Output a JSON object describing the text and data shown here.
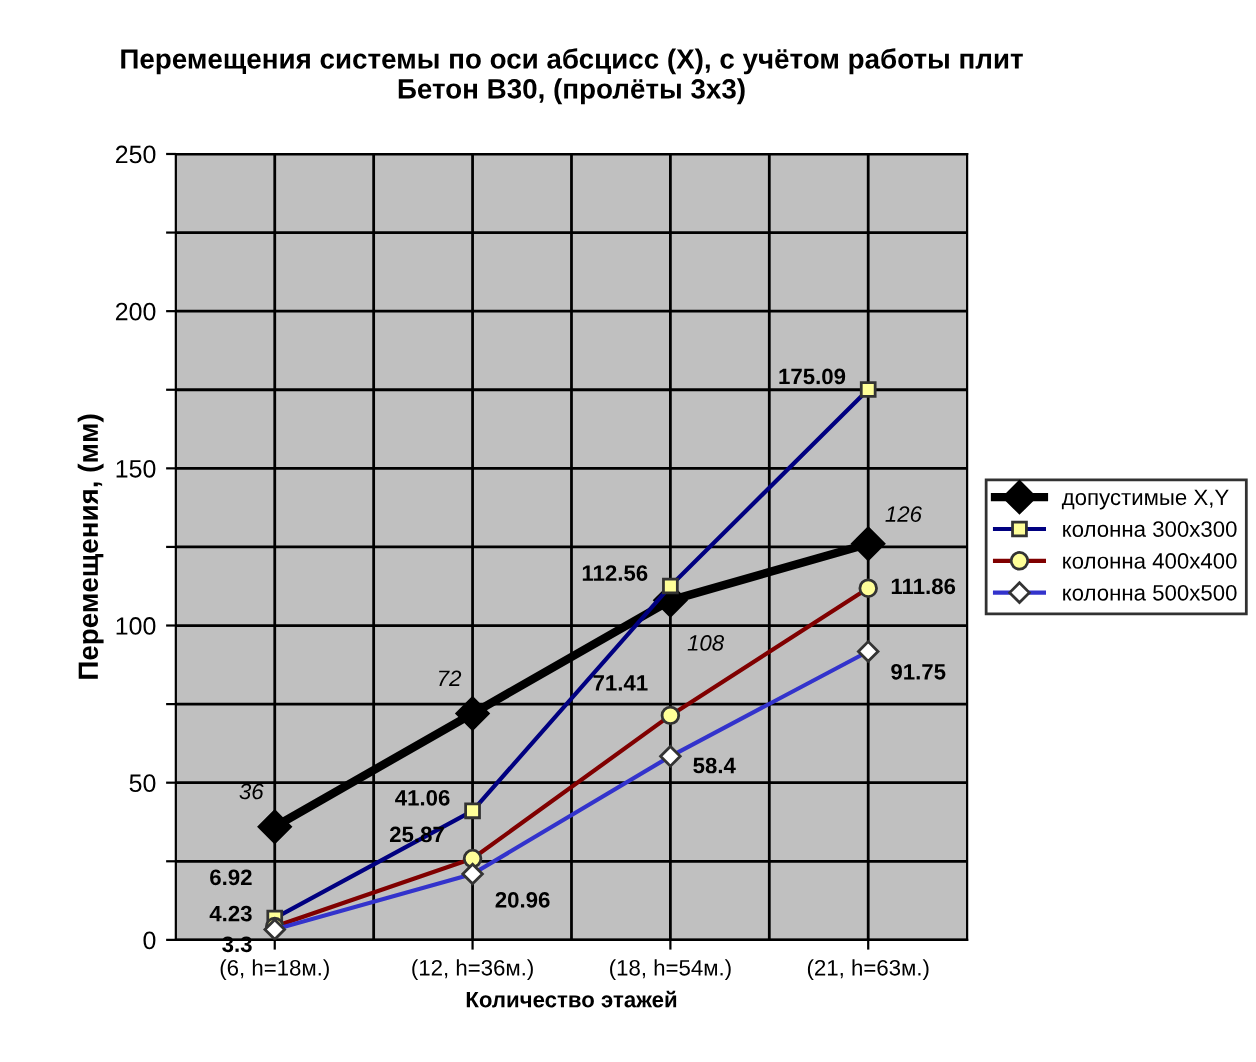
{
  "chart_data": {
    "type": "line",
    "title": "Перемещения системы по оси абсцисс (X), с учётом работы плит\nБетон В30, (пролёты 3x3)",
    "xlabel": "Количество этажей",
    "ylabel": "Перемещения, (мм)",
    "categories": [
      "(6, h=18м.)",
      "(12, h=36м.)",
      "(18, h=54м.)",
      "(21, h=63м.)"
    ],
    "ylim": [
      0,
      250
    ],
    "yticks": [
      0,
      {
        "value": 25,
        "label": null
      },
      50,
      {
        "value": 75,
        "label": null
      },
      100,
      {
        "value": 125,
        "label": null
      },
      150,
      {
        "value": 175,
        "label": null
      },
      200,
      {
        "value": 225,
        "label": null
      },
      250
    ],
    "grid": true,
    "legend": "right",
    "data_labels": true,
    "series": [
      {
        "name": "допустимые X,Y",
        "color": "#000000",
        "marker": "diamond",
        "values": [
          36,
          72,
          108,
          126
        ]
      },
      {
        "name": "колонна 300x300",
        "color": "#000080",
        "marker": "square",
        "values": [
          6.92,
          41.06,
          112.56,
          175.09
        ]
      },
      {
        "name": "колонна 400x400",
        "color": "#800000",
        "marker": "circle",
        "values": [
          4.23,
          25.87,
          71.41,
          111.86
        ]
      },
      {
        "name": "колонна 500x500",
        "color": "#3333cc",
        "marker": "diamond",
        "values": [
          3.3,
          20.96,
          58.4,
          91.75
        ]
      }
    ]
  }
}
